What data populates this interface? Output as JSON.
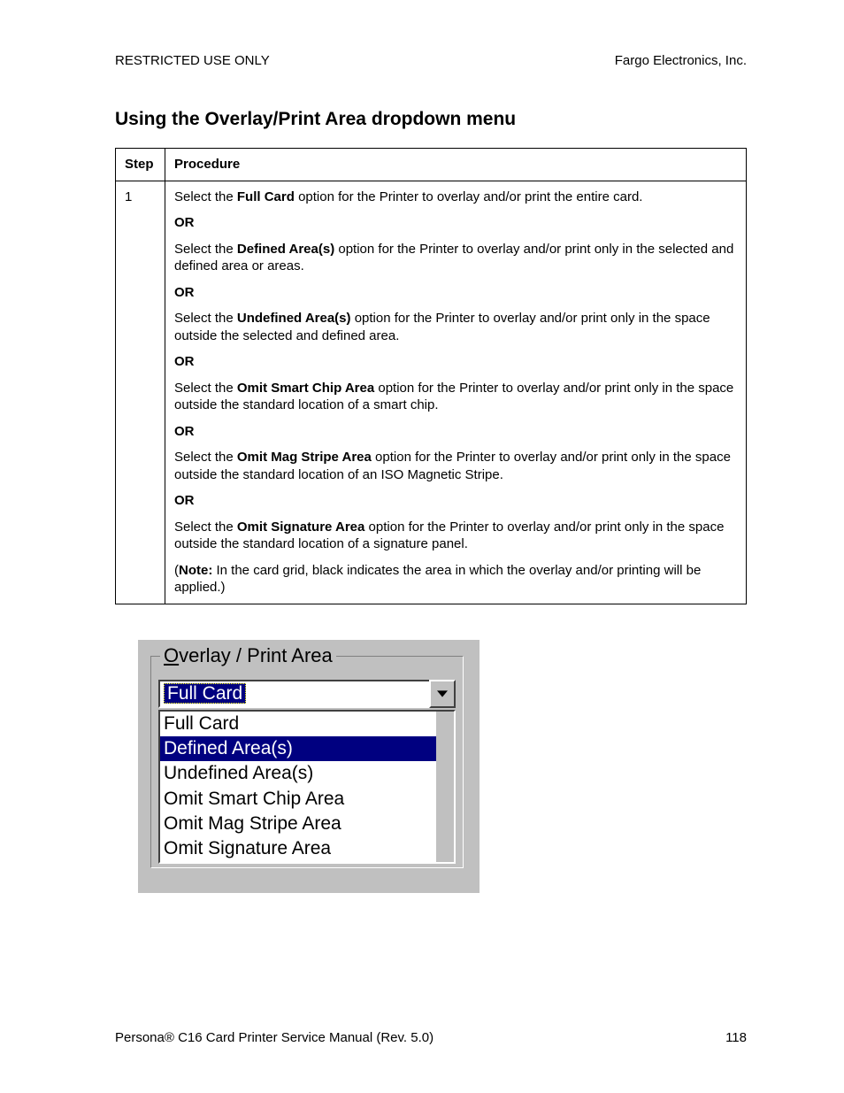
{
  "header": {
    "left": "RESTRICTED USE ONLY",
    "right": "Fargo Electronics, Inc."
  },
  "title": "Using the Overlay/Print Area dropdown menu",
  "table": {
    "col_step": "Step",
    "col_proc": "Procedure",
    "step_num": "1",
    "opt1_pre": "Select the ",
    "opt1_b": "Full Card",
    "opt1_post": " option for the Printer to overlay and/or print the entire card.",
    "or": "OR",
    "opt2_pre": "Select the ",
    "opt2_b": "Defined Area(s)",
    "opt2_post": " option for the Printer to overlay and/or print only in the selected and defined area or areas.",
    "opt3_pre": "Select the ",
    "opt3_b": "Undefined Area(s)",
    "opt3_post": " option for the Printer to overlay and/or print only in the space outside the selected and defined area.",
    "opt4_pre": "Select the ",
    "opt4_b": "Omit Smart Chip Area",
    "opt4_post": " option for the Printer to overlay and/or print only in the space outside the standard location of a smart chip.",
    "opt5_pre": "Select the ",
    "opt5_b": "Omit Mag Stripe Area",
    "opt5_post": " option for the Printer to overlay and/or print only in the space outside the standard location of an ISO Magnetic Stripe.",
    "opt6_pre": "Select the ",
    "opt6_b": "Omit Signature Area",
    "opt6_post": " option for the Printer to overlay and/or print only in the space outside the standard location of a signature panel.",
    "note_open": "(",
    "note_b": "Note:",
    "note_rest": " In the card grid, black indicates the area in which the overlay and/or printing will be applied.)"
  },
  "dropdown": {
    "legend_u": "O",
    "legend_rest": "verlay / Print Area",
    "selected": "Full Card",
    "items": [
      "Full Card",
      "Defined Area(s)",
      "Undefined Area(s)",
      "Omit Smart Chip Area",
      "Omit Mag Stripe Area",
      "Omit Signature Area"
    ],
    "highlight_index": 1
  },
  "footer": {
    "left": "Persona® C16 Card Printer Service Manual (Rev. 5.0)",
    "page": "118"
  },
  "colors": {
    "win_bg": "#c0c0c0",
    "highlight_bg": "#000080",
    "highlight_fg": "#ffffff"
  }
}
